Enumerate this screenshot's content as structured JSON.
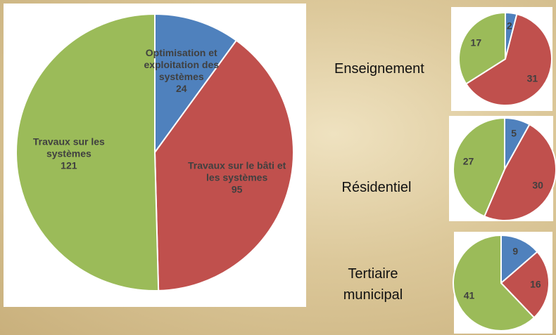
{
  "chart_data": [
    {
      "type": "pie",
      "categories": [
        "Optimisation et exploitation des systèmes",
        "Travaux sur le bâti et les systèmes",
        "Travaux sur les systèmes"
      ],
      "values": [
        24,
        95,
        121
      ],
      "colors": [
        "#4f81bd",
        "#c0504d",
        "#9bbb59"
      ]
    },
    {
      "type": "pie",
      "title": "Enseignement",
      "values": [
        2,
        31,
        17
      ],
      "colors": [
        "#4f81bd",
        "#c0504d",
        "#9bbb59"
      ]
    },
    {
      "type": "pie",
      "title": "Résidentiel",
      "values": [
        5,
        30,
        27
      ],
      "colors": [
        "#4f81bd",
        "#c0504d",
        "#9bbb59"
      ]
    },
    {
      "type": "pie",
      "title": "Tertiaire municipal",
      "values": [
        9,
        16,
        41
      ],
      "colors": [
        "#4f81bd",
        "#c0504d",
        "#9bbb59"
      ]
    }
  ]
}
